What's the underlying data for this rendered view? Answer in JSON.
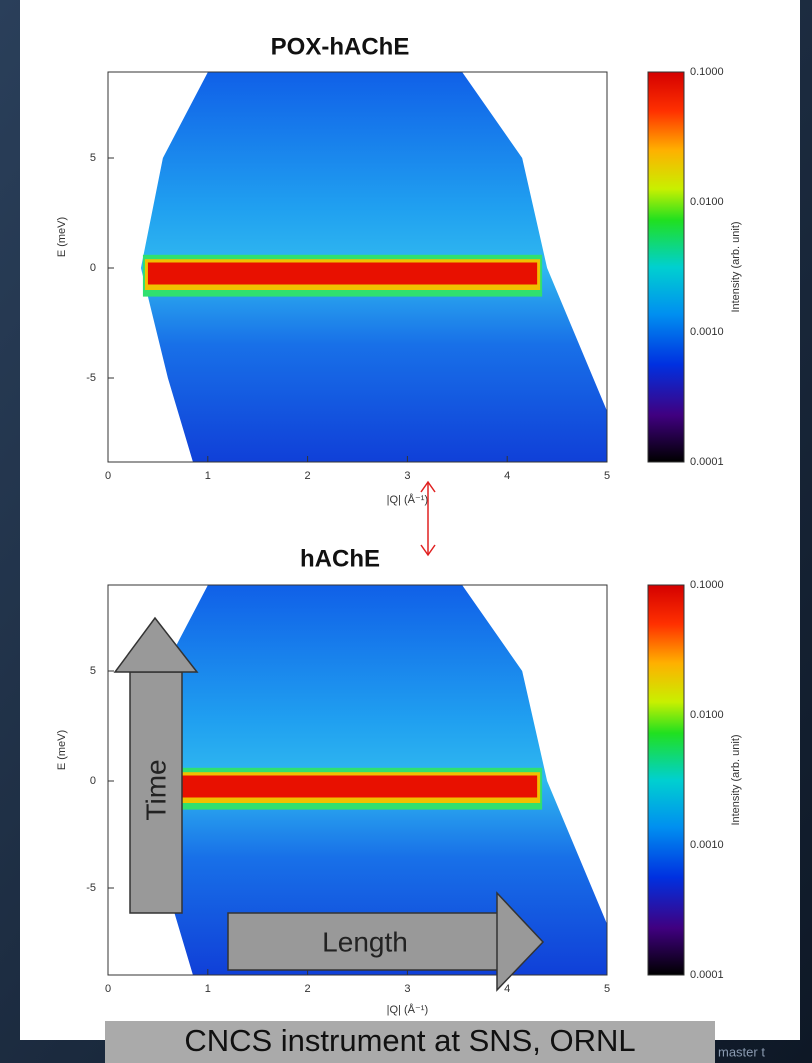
{
  "plots": [
    {
      "title": "POX-hAChE",
      "x_label": "|Q| (Å⁻¹)",
      "y_label": "E (meV)",
      "x_ticks": [
        "0",
        "1",
        "2",
        "3",
        "4",
        "5"
      ],
      "y_ticks": [
        "5",
        "0",
        "-5"
      ],
      "colorbar_ticks": [
        "0.1000",
        "0.0100",
        "0.0010",
        "0.0001"
      ],
      "colorbar_label": "Intensity (arb. unit)"
    },
    {
      "title": "hAChE",
      "x_label": "|Q| (Å⁻¹)",
      "y_label": "E (meV)",
      "x_ticks": [
        "0",
        "1",
        "2",
        "3",
        "4",
        "5"
      ],
      "y_ticks": [
        "5",
        "0",
        "-5"
      ],
      "colorbar_ticks": [
        "0.1000",
        "0.0100",
        "0.0010",
        "0.0001"
      ],
      "colorbar_label": "Intensity (arb. unit)"
    }
  ],
  "annotations": {
    "time": "Time",
    "length": "Length"
  },
  "caption": "CNCS instrument at SNS, ORNL",
  "footer": "master t"
}
